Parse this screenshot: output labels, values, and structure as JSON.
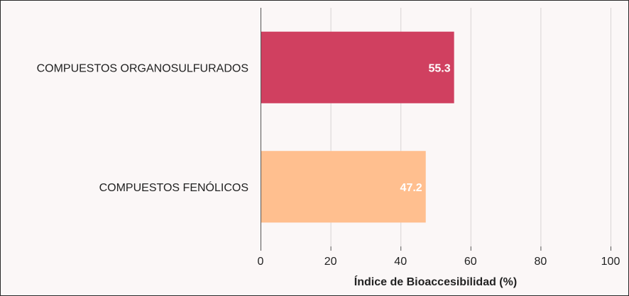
{
  "chart_data": {
    "type": "bar",
    "orientation": "horizontal",
    "categories": [
      "COMPUESTOS ORGANOSULFURADOS",
      "COMPUESTOS FENÓLICOS"
    ],
    "values": [
      55.3,
      47.2
    ],
    "value_labels": [
      "55.3",
      "47.2"
    ],
    "colors": [
      "#d04060",
      "#ffbf8f"
    ],
    "title": "",
    "xlabel": "Índice de Bioaccesibilidad (%)",
    "ylabel": "",
    "xlim": [
      0,
      100
    ],
    "x_ticks": [
      0,
      20,
      40,
      60,
      80,
      100
    ],
    "x_tick_labels": [
      "0",
      "20",
      "40",
      "60",
      "80",
      "100"
    ],
    "grid": true,
    "legend": "none"
  }
}
